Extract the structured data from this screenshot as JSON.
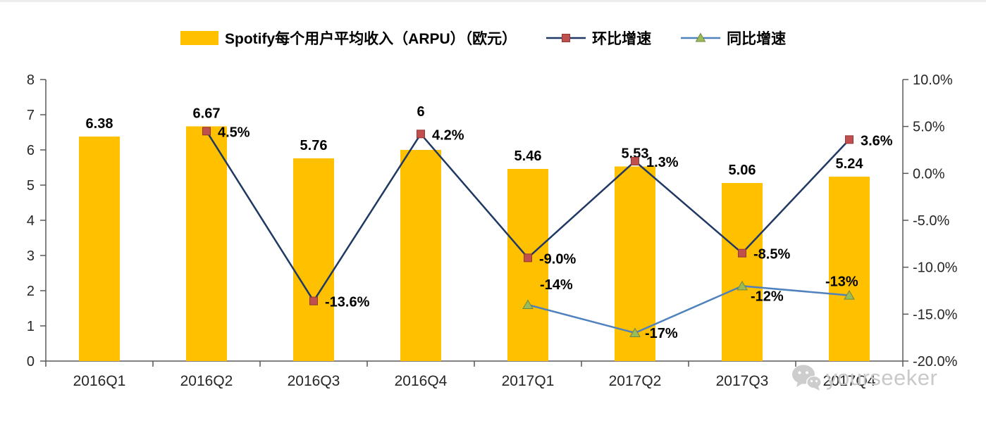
{
  "legend": {
    "items": [
      {
        "id": "arpu",
        "label": "Spotify每个用户平均收入（ARPU）（欧元）",
        "swatch": "bar",
        "color": "#FFC000"
      },
      {
        "id": "qoq",
        "label": "环比增速",
        "swatch": "line-square",
        "line_color": "#1F3864",
        "marker_color": "#C0504D"
      },
      {
        "id": "yoy",
        "label": "同比增速",
        "swatch": "line-triangle",
        "line_color": "#4F81BD",
        "marker_color": "#9BBB59"
      }
    ]
  },
  "watermark": {
    "text": "yourseeker",
    "icon": "wechat-icon"
  },
  "colors": {
    "bar": "#FFC000",
    "qoq_line": "#1F3864",
    "qoq_marker": "#C0504D",
    "yoy_line": "#4F81BD",
    "yoy_marker": "#9BBB59",
    "axis": "#595959",
    "text": "#262626"
  },
  "chart_data": {
    "type": "bar",
    "subtype": "combo-bar-line",
    "title": "",
    "xlabel": "",
    "ylabel": "",
    "grid": false,
    "legend_position": "top",
    "categories": [
      "2016Q1",
      "2016Q2",
      "2016Q3",
      "2016Q4",
      "2017Q1",
      "2017Q2",
      "2017Q3",
      "2017Q4"
    ],
    "series": [
      {
        "id": "arpu",
        "name": "Spotify每个用户平均收入（ARPU）（欧元）",
        "type": "bar",
        "axis": "left",
        "color": "#FFC000",
        "values": [
          6.38,
          6.67,
          5.76,
          6,
          5.46,
          5.53,
          5.06,
          5.24
        ],
        "labels": [
          "6.38",
          "6.67",
          "5.76",
          "6",
          "5.46",
          "5.53",
          "5.06",
          "5.24"
        ]
      },
      {
        "id": "qoq",
        "name": "环比增速",
        "type": "line",
        "axis": "right",
        "line_color": "#1F3864",
        "marker": "square",
        "marker_color": "#C0504D",
        "values": [
          null,
          4.5,
          -13.6,
          4.2,
          -9.0,
          1.3,
          -8.5,
          3.6
        ],
        "labels": [
          null,
          "4.5%",
          "-13.6%",
          "4.2%",
          "-9.0%",
          "1.3%",
          "-8.5%",
          "3.6%"
        ]
      },
      {
        "id": "yoy",
        "name": "同比增速",
        "type": "line",
        "axis": "right",
        "line_color": "#4F81BD",
        "marker": "triangle",
        "marker_color": "#9BBB59",
        "values": [
          null,
          null,
          null,
          null,
          -14,
          -17,
          -12,
          -13
        ],
        "labels": [
          null,
          null,
          null,
          null,
          "-14%",
          "-17%",
          "-12%",
          "-13%"
        ]
      }
    ],
    "left_axis": {
      "min": 0,
      "max": 8,
      "tick_values": [
        0,
        1,
        2,
        3,
        4,
        5,
        6,
        7,
        8
      ],
      "tick_labels": [
        "0",
        "1",
        "2",
        "3",
        "4",
        "5",
        "6",
        "7",
        "8"
      ]
    },
    "right_axis": {
      "min": -20,
      "max": 10,
      "tick_values": [
        10,
        5,
        0,
        -5,
        -10,
        -15,
        -20
      ],
      "tick_labels": [
        "10.0%",
        "5.0%",
        "0.0%",
        "-5.0%",
        "-10.0%",
        "-15.0%",
        "-20.0%"
      ]
    }
  }
}
